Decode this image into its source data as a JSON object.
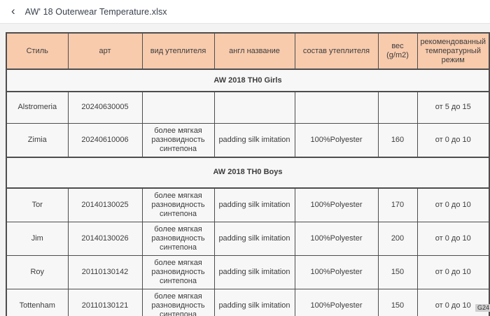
{
  "titlebar": {
    "back_icon": "‹",
    "title": "AW' 18 Outerwear Temperature.xlsx"
  },
  "cell_badge": "G24",
  "colors": {
    "header_bg": "#f8cbad",
    "table_border": "#4d4d4d",
    "cell_bg": "#f7f7f7",
    "badge_bg": "#cfcfcf",
    "title_text": "#39414d"
  },
  "table": {
    "headers": [
      "Стиль",
      "арт",
      "вид утеплителя",
      "англ название",
      "состав утеплителя",
      "вес (g/m2)",
      "рекомендованный температурный режим"
    ],
    "sections": [
      {
        "label": "AW 2018 TH0 Girls",
        "rows": [
          [
            "Alstromeria",
            "20240630005",
            "",
            "",
            "",
            "",
            "от 5 до 15"
          ],
          [
            "Zimia",
            "20240610006",
            "более мягкая разновидность синтепона",
            "padding silk imitation",
            "100%Polyester",
            "160",
            "от 0 до 10"
          ]
        ]
      },
      {
        "label": "AW 2018 TH0 Boys",
        "rows": [
          [
            "Tor",
            "20140130025",
            "более мягкая разновидность синтепона",
            "padding silk imitation",
            "100%Polyester",
            "170",
            "от 0 до 10"
          ],
          [
            "Jim",
            "20140130026",
            "более мягкая разновидность синтепона",
            "padding silk imitation",
            "100%Polyester",
            "200",
            "от 0 до 10"
          ],
          [
            "Roy",
            "20110130142",
            "более мягкая разновидность синтепона",
            "padding silk imitation",
            "100%Polyester",
            "150",
            "от 0 до 10"
          ],
          [
            "Tottenham",
            "20110130121",
            "более мягкая разновидность синтепона",
            "padding silk imitation",
            "100%Polyester",
            "150",
            "от 0 до 10"
          ]
        ]
      }
    ]
  }
}
